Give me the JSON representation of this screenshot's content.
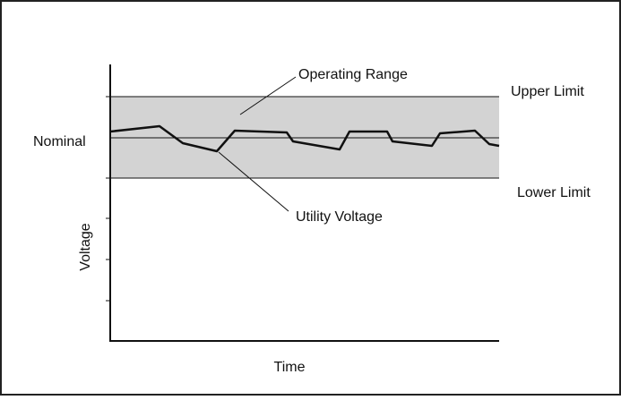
{
  "colors": {
    "band_fill": "#d3d3d3",
    "line": "#111111",
    "frame": "#222222",
    "background": "#ffffff"
  },
  "labels": {
    "operating_range": "Operating Range",
    "upper_limit": "Upper Limit",
    "lower_limit": "Lower Limit",
    "nominal": "Nominal",
    "utility_voltage": "Utility Voltage",
    "y_axis": "Voltage",
    "x_axis": "Time"
  }
}
